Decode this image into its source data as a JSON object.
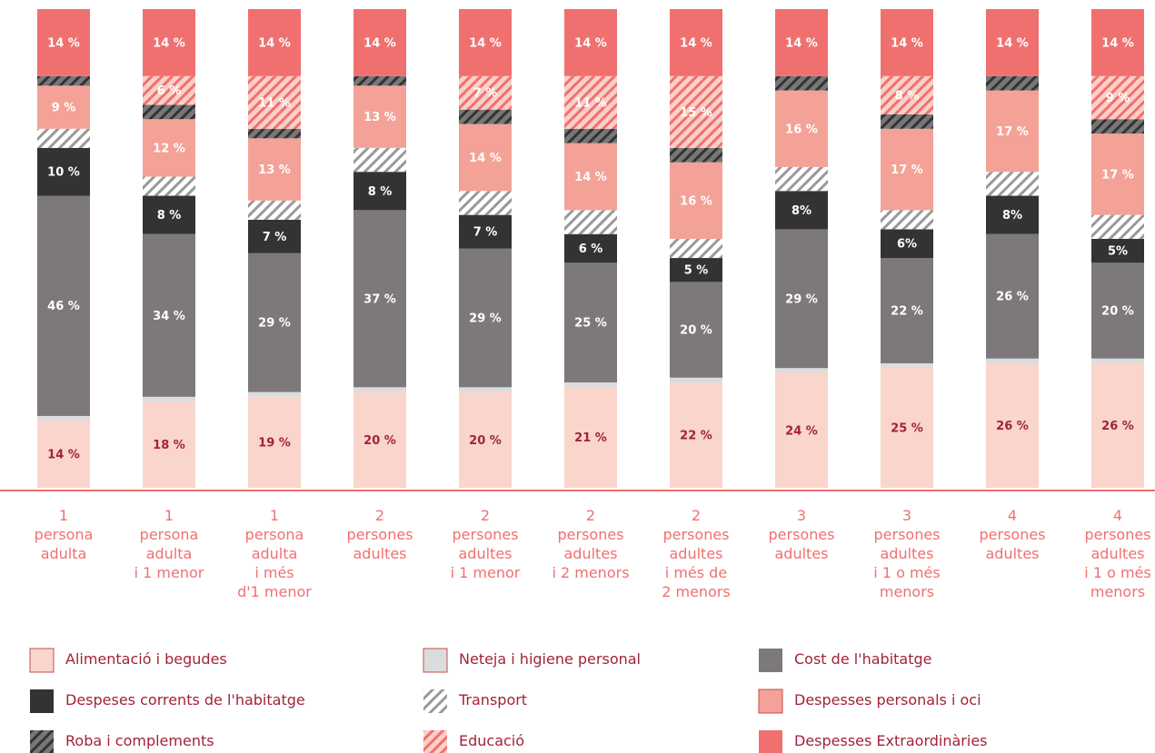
{
  "chart_data": {
    "type": "stacked_bar",
    "categories": [
      "1\npersona\nadulta",
      "1\npersona\nadulta\ni 1 menor",
      "1\npersona\nadulta\ni més\nd'1 menor",
      "2\npersones\nadultes",
      "2\npersones\nadultes\ni 1 menor",
      "2\npersones\nadultes\ni 2 menors",
      "2\npersones\nadultes\ni més de\n2 menors",
      "3\npersones\nadultes",
      "3\npersones\nadultes\ni 1 o més\nmenors",
      "4\npersones\nadultes",
      "4\npersones\nadultes\ni 1 o més\nmenors"
    ],
    "ylim": [
      0,
      100
    ],
    "series": [
      {
        "name": "Alimentació i begudes",
        "color": "#f9d5cc",
        "label_color": "#a3223a",
        "values": [
          14,
          18,
          19,
          20,
          20,
          21,
          22,
          24,
          25,
          26,
          26
        ],
        "value_labels": [
          "14 %",
          "18 %",
          "19 %",
          "20 %",
          "20 %",
          "21 %",
          "22 %",
          "24 %",
          "25 %",
          "26 %",
          "26 %"
        ]
      },
      {
        "name": "Neteja i higiene personal",
        "color": "#dcdcdc",
        "values": [
          1,
          1,
          1,
          1,
          1,
          1,
          1,
          1,
          1,
          1,
          1
        ]
      },
      {
        "name": "Cost de l'habitatge",
        "color": "#7d7879",
        "label_color": "#ffffff",
        "values": [
          46,
          34,
          29,
          37,
          29,
          25,
          20,
          29,
          22,
          26,
          20
        ],
        "value_labels": [
          "46 %",
          "34 %",
          "29 %",
          "37 %",
          "29 %",
          "25 %",
          "20 %",
          "29 %",
          "22 %",
          "26 %",
          "20 %"
        ]
      },
      {
        "name": "Despeses corrents de l'habitatge",
        "color": "#333333",
        "label_color": "#ffffff",
        "values": [
          10,
          8,
          7,
          8,
          7,
          6,
          5,
          8,
          6,
          8,
          5
        ],
        "value_labels": [
          "10 %",
          "8 %",
          "7 %",
          "8 %",
          "7 %",
          "6 %",
          "5 %",
          "8%",
          "6%",
          "8%",
          "5%"
        ]
      },
      {
        "name": "Transport",
        "color": "#999999",
        "hatch": true,
        "background": "#ffffff",
        "values": [
          4,
          4,
          4,
          5,
          5,
          5,
          4,
          5,
          4,
          5,
          5
        ]
      },
      {
        "name": "Despesses personals i oci",
        "color": "#f4a297",
        "label_color": "#ffffff",
        "values": [
          9,
          12,
          13,
          13,
          14,
          14,
          16,
          16,
          17,
          17,
          17
        ],
        "value_labels": [
          "9 %",
          "12 %",
          "13 %",
          "13 %",
          "14 %",
          "14 %",
          "16 %",
          "16 %",
          "17 %",
          "17 %",
          "17 %"
        ]
      },
      {
        "name": "Roba i complements",
        "color": "#333333",
        "hatch": true,
        "background": "#777777",
        "values": [
          2,
          3,
          2,
          2,
          3,
          3,
          3,
          3,
          3,
          3,
          3
        ]
      },
      {
        "name": "Educació",
        "color": "#f07070",
        "hatch": true,
        "background": "#fbd0c8",
        "label_color": "#ffffff",
        "values": [
          0,
          6,
          11,
          0,
          7,
          11,
          15,
          0,
          8,
          0,
          9
        ],
        "value_labels": [
          null,
          "6 %",
          "11 %",
          null,
          "7 %",
          "11 %",
          "15 %",
          null,
          "8 %",
          null,
          "9 %"
        ]
      },
      {
        "name": "Despesses Extraordinàries",
        "color": "#f07070",
        "label_color": "#ffffff",
        "values": [
          14,
          14,
          14,
          14,
          14,
          14,
          14,
          14,
          14,
          14,
          14
        ],
        "value_labels": [
          "14 %",
          "14 %",
          "14 %",
          "14 %",
          "14 %",
          "14 %",
          "14 %",
          "14 %",
          "14 %",
          "14 %",
          "14 %"
        ]
      }
    ]
  }
}
